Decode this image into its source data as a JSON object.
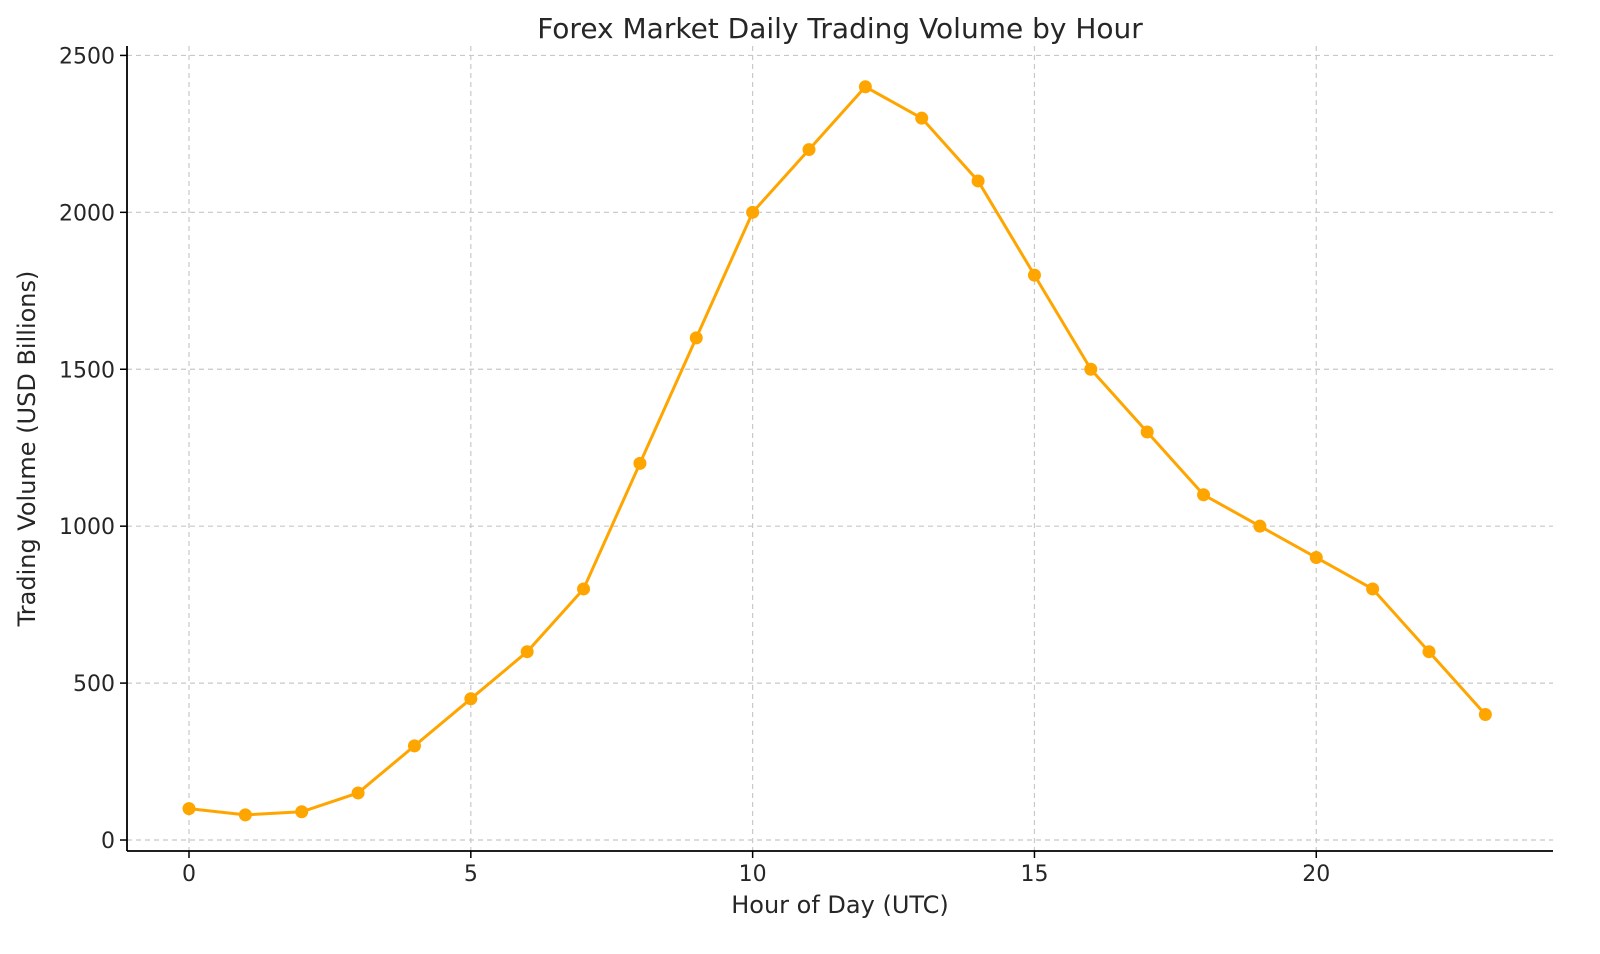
{
  "chart_data": {
    "type": "line",
    "title": "Forex Market Daily Trading Volume by Hour",
    "xlabel": "Hour of Day (UTC)",
    "ylabel": "Trading Volume (USD Billions)",
    "xlim": [
      -1.1,
      24.2
    ],
    "ylim": [
      -35,
      2530
    ],
    "x_ticks": [
      0,
      5,
      10,
      15,
      20
    ],
    "y_ticks": [
      0,
      500,
      1000,
      1500,
      2000,
      2500
    ],
    "grid": true,
    "color": "#FFA500",
    "series": [
      {
        "x": [
          0,
          1,
          2,
          3,
          4,
          5,
          6,
          7,
          8,
          9,
          10,
          11,
          12,
          13,
          14,
          15,
          16,
          17,
          18,
          19,
          20,
          21,
          22,
          23
        ],
        "y": [
          100,
          80,
          90,
          150,
          300,
          450,
          600,
          800,
          1200,
          1600,
          2000,
          2200,
          2400,
          2300,
          2100,
          1800,
          1500,
          1300,
          1100,
          1000,
          900,
          800,
          600,
          400
        ]
      }
    ]
  }
}
